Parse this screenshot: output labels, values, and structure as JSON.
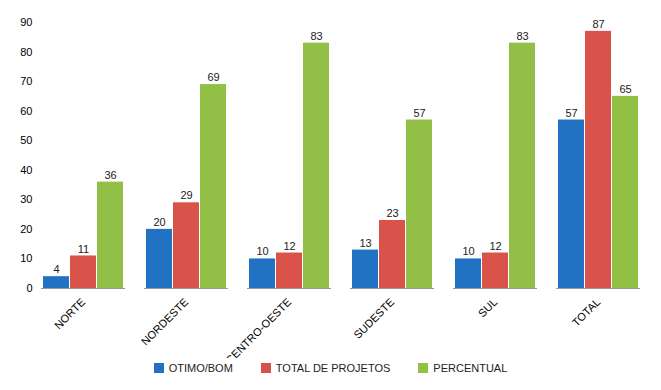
{
  "chart_data": {
    "type": "bar",
    "categories": [
      "NORTE",
      "NORDESTE",
      "CENTRO-OESTE",
      "SUDESTE",
      "SUL",
      "TOTAL"
    ],
    "series": [
      {
        "name": "OTIMO/BOM",
        "color": "#2272c3",
        "values": [
          4,
          20,
          10,
          13,
          10,
          57
        ]
      },
      {
        "name": "TOTAL DE PROJETOS",
        "color": "#d9534a",
        "values": [
          11,
          29,
          12,
          23,
          12,
          87
        ]
      },
      {
        "name": "PERCENTUAL",
        "color": "#92c047",
        "values": [
          36,
          69,
          83,
          57,
          83,
          65
        ]
      }
    ],
    "ylim": [
      0,
      90
    ],
    "yticks": [
      0,
      10,
      20,
      30,
      40,
      50,
      60,
      70,
      80,
      90
    ],
    "grid": false,
    "legend": "bottom",
    "data_labels": true
  }
}
